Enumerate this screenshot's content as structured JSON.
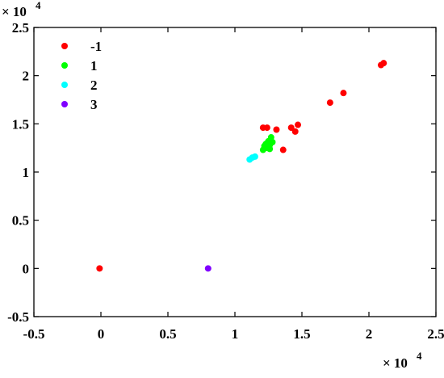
{
  "chart_data": {
    "type": "scatter",
    "title": "",
    "xlabel": "",
    "ylabel": "",
    "xlim": [
      -0.5,
      2.5
    ],
    "ylim": [
      -0.5,
      2.5
    ],
    "x_ticks": [
      "-0.5",
      "0",
      "0.5",
      "1",
      "1.5",
      "2",
      "2.5"
    ],
    "y_ticks": [
      "-0.5",
      "0",
      "0.5",
      "1",
      "1.5",
      "2",
      "2.5"
    ],
    "x_multiplier": {
      "base": "× 10",
      "exponent": "4"
    },
    "y_multiplier": {
      "base": "× 10",
      "exponent": "4"
    },
    "grid": false,
    "legend_position": "top-left",
    "series": [
      {
        "name": "-1",
        "color": "#ff0000",
        "points": [
          [
            -0.01,
            0.0
          ],
          [
            1.21,
            1.46
          ],
          [
            1.24,
            1.46
          ],
          [
            1.31,
            1.44
          ],
          [
            1.36,
            1.23
          ],
          [
            1.42,
            1.46
          ],
          [
            1.45,
            1.42
          ],
          [
            1.47,
            1.49
          ],
          [
            1.71,
            1.72
          ],
          [
            1.81,
            1.82
          ],
          [
            2.09,
            2.11
          ],
          [
            2.11,
            2.13
          ]
        ]
      },
      {
        "name": "1",
        "color": "#00ff00",
        "points": [
          [
            1.21,
            1.23
          ],
          [
            1.22,
            1.27
          ],
          [
            1.23,
            1.29
          ],
          [
            1.24,
            1.3
          ],
          [
            1.24,
            1.25
          ],
          [
            1.25,
            1.32
          ],
          [
            1.26,
            1.28
          ],
          [
            1.26,
            1.24
          ],
          [
            1.27,
            1.36
          ],
          [
            1.28,
            1.31
          ],
          [
            1.23,
            1.25
          ]
        ]
      },
      {
        "name": "2",
        "color": "#00ffff",
        "points": [
          [
            1.11,
            1.13
          ],
          [
            1.13,
            1.15
          ],
          [
            1.15,
            1.16
          ]
        ]
      },
      {
        "name": "3",
        "color": "#8000ff",
        "points": [
          [
            0.8,
            0.0
          ]
        ]
      }
    ]
  }
}
